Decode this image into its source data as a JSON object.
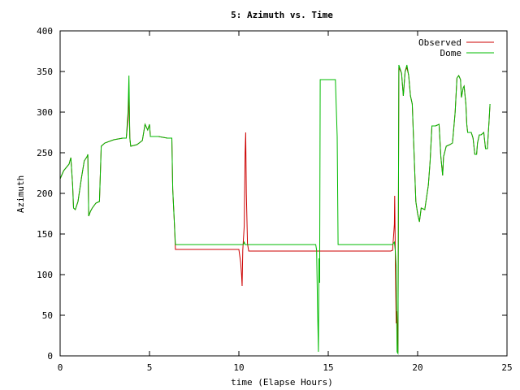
{
  "chart_data": {
    "type": "line",
    "title": "5: Azimuth vs. Time",
    "xlabel": "time (Elapse Hours)",
    "ylabel": "Azimuth",
    "xlim": [
      0,
      25
    ],
    "ylim": [
      0,
      400
    ],
    "xticks": [
      0,
      5,
      10,
      15,
      20,
      25
    ],
    "yticks": [
      0,
      50,
      100,
      150,
      200,
      250,
      300,
      350,
      400
    ],
    "grid": false,
    "legend_position": "top-right",
    "series": [
      {
        "name": "Observed",
        "color": "#cc0000",
        "points": [
          [
            0.0,
            218
          ],
          [
            0.2,
            228
          ],
          [
            0.5,
            236
          ],
          [
            0.6,
            244
          ],
          [
            0.7,
            210
          ],
          [
            0.75,
            182
          ],
          [
            0.85,
            180
          ],
          [
            1.0,
            190
          ],
          [
            1.2,
            220
          ],
          [
            1.35,
            240
          ],
          [
            1.5,
            245
          ],
          [
            1.55,
            248
          ],
          [
            1.6,
            172
          ],
          [
            1.7,
            178
          ],
          [
            1.8,
            182
          ],
          [
            2.0,
            188
          ],
          [
            2.2,
            190
          ],
          [
            2.3,
            258
          ],
          [
            2.5,
            262
          ],
          [
            3.0,
            266
          ],
          [
            3.5,
            268
          ],
          [
            3.7,
            268
          ],
          [
            3.8,
            290
          ],
          [
            3.85,
            325
          ],
          [
            3.9,
            268
          ],
          [
            3.95,
            258
          ],
          [
            4.3,
            260
          ],
          [
            4.6,
            265
          ],
          [
            4.75,
            285
          ],
          [
            4.9,
            278
          ],
          [
            5.0,
            285
          ],
          [
            5.05,
            270
          ],
          [
            5.5,
            270
          ],
          [
            6.0,
            268
          ],
          [
            6.25,
            268
          ],
          [
            6.3,
            205
          ],
          [
            6.38,
            168
          ],
          [
            6.45,
            131
          ],
          [
            8.0,
            131
          ],
          [
            10.0,
            131
          ],
          [
            10.1,
            115
          ],
          [
            10.15,
            100
          ],
          [
            10.18,
            86
          ],
          [
            10.22,
            130
          ],
          [
            10.3,
            160
          ],
          [
            10.35,
            250
          ],
          [
            10.38,
            275
          ],
          [
            10.42,
            200
          ],
          [
            10.48,
            138
          ],
          [
            10.55,
            129
          ],
          [
            12.0,
            129
          ],
          [
            14.0,
            129
          ],
          [
            18.5,
            129
          ],
          [
            18.6,
            130
          ],
          [
            18.7,
            162
          ],
          [
            18.72,
            197
          ],
          [
            18.76,
            105
          ],
          [
            18.8,
            40
          ],
          [
            18.84,
            55
          ],
          [
            18.9,
            4
          ],
          [
            18.95,
            355
          ],
          [
            19.1,
            348
          ],
          [
            19.2,
            320
          ],
          [
            19.3,
            350
          ],
          [
            19.4,
            355
          ],
          [
            19.5,
            345
          ],
          [
            19.6,
            320
          ],
          [
            19.7,
            310
          ],
          [
            19.8,
            250
          ],
          [
            19.9,
            190
          ],
          [
            20.0,
            175
          ],
          [
            20.1,
            165
          ],
          [
            20.2,
            182
          ],
          [
            20.4,
            180
          ],
          [
            20.6,
            210
          ],
          [
            20.7,
            240
          ],
          [
            20.8,
            283
          ],
          [
            21.0,
            283
          ],
          [
            21.2,
            285
          ],
          [
            21.3,
            245
          ],
          [
            21.4,
            222
          ],
          [
            21.45,
            245
          ],
          [
            21.6,
            258
          ],
          [
            21.8,
            260
          ],
          [
            21.95,
            262
          ],
          [
            22.1,
            300
          ],
          [
            22.2,
            342
          ],
          [
            22.3,
            345
          ],
          [
            22.4,
            340
          ],
          [
            22.45,
            318
          ],
          [
            22.55,
            330
          ],
          [
            22.6,
            332
          ],
          [
            22.7,
            310
          ],
          [
            22.75,
            285
          ],
          [
            22.8,
            275
          ],
          [
            23.0,
            275
          ],
          [
            23.1,
            268
          ],
          [
            23.2,
            248
          ],
          [
            23.3,
            248
          ],
          [
            23.35,
            262
          ],
          [
            23.45,
            272
          ],
          [
            23.55,
            272
          ],
          [
            23.7,
            275
          ],
          [
            23.8,
            255
          ],
          [
            23.9,
            255
          ],
          [
            24.0,
            290
          ],
          [
            24.05,
            310
          ]
        ]
      },
      {
        "name": "Dome",
        "color": "#00bb00",
        "points": [
          [
            0.0,
            218
          ],
          [
            0.2,
            228
          ],
          [
            0.5,
            236
          ],
          [
            0.6,
            244
          ],
          [
            0.7,
            210
          ],
          [
            0.75,
            182
          ],
          [
            0.85,
            180
          ],
          [
            1.0,
            190
          ],
          [
            1.2,
            220
          ],
          [
            1.35,
            240
          ],
          [
            1.5,
            245
          ],
          [
            1.55,
            248
          ],
          [
            1.6,
            172
          ],
          [
            1.7,
            178
          ],
          [
            1.8,
            182
          ],
          [
            2.0,
            188
          ],
          [
            2.2,
            190
          ],
          [
            2.3,
            258
          ],
          [
            2.5,
            262
          ],
          [
            3.0,
            266
          ],
          [
            3.5,
            268
          ],
          [
            3.7,
            268
          ],
          [
            3.8,
            300
          ],
          [
            3.85,
            345
          ],
          [
            3.9,
            268
          ],
          [
            3.95,
            258
          ],
          [
            4.3,
            260
          ],
          [
            4.6,
            265
          ],
          [
            4.75,
            285
          ],
          [
            4.9,
            278
          ],
          [
            5.0,
            285
          ],
          [
            5.05,
            270
          ],
          [
            5.5,
            270
          ],
          [
            6.0,
            268
          ],
          [
            6.25,
            268
          ],
          [
            6.3,
            205
          ],
          [
            6.38,
            168
          ],
          [
            6.45,
            137
          ],
          [
            8.0,
            137
          ],
          [
            10.0,
            137
          ],
          [
            10.25,
            137
          ],
          [
            10.3,
            140
          ],
          [
            10.35,
            137
          ],
          [
            12.0,
            137
          ],
          [
            14.0,
            137
          ],
          [
            14.3,
            137
          ],
          [
            14.35,
            130
          ],
          [
            14.4,
            60
          ],
          [
            14.45,
            5
          ],
          [
            14.48,
            120
          ],
          [
            14.52,
            90
          ],
          [
            14.55,
            340
          ],
          [
            15.0,
            340
          ],
          [
            15.4,
            340
          ],
          [
            15.5,
            270
          ],
          [
            15.55,
            137
          ],
          [
            17.0,
            137
          ],
          [
            18.6,
            137
          ],
          [
            18.7,
            140
          ],
          [
            18.75,
            130
          ],
          [
            18.8,
            110
          ],
          [
            18.85,
            5
          ],
          [
            18.9,
            3
          ],
          [
            18.95,
            358
          ],
          [
            19.1,
            348
          ],
          [
            19.2,
            320
          ],
          [
            19.3,
            350
          ],
          [
            19.4,
            358
          ],
          [
            19.5,
            345
          ],
          [
            19.6,
            320
          ],
          [
            19.7,
            310
          ],
          [
            19.8,
            250
          ],
          [
            19.9,
            190
          ],
          [
            20.0,
            175
          ],
          [
            20.1,
            165
          ],
          [
            20.2,
            182
          ],
          [
            20.4,
            180
          ],
          [
            20.6,
            210
          ],
          [
            20.7,
            240
          ],
          [
            20.8,
            283
          ],
          [
            21.0,
            283
          ],
          [
            21.2,
            285
          ],
          [
            21.3,
            245
          ],
          [
            21.4,
            222
          ],
          [
            21.45,
            245
          ],
          [
            21.6,
            258
          ],
          [
            21.8,
            260
          ],
          [
            21.95,
            262
          ],
          [
            22.1,
            300
          ],
          [
            22.2,
            342
          ],
          [
            22.3,
            345
          ],
          [
            22.4,
            340
          ],
          [
            22.45,
            318
          ],
          [
            22.55,
            330
          ],
          [
            22.6,
            332
          ],
          [
            22.7,
            310
          ],
          [
            22.75,
            285
          ],
          [
            22.8,
            275
          ],
          [
            23.0,
            275
          ],
          [
            23.1,
            268
          ],
          [
            23.2,
            248
          ],
          [
            23.3,
            248
          ],
          [
            23.35,
            262
          ],
          [
            23.45,
            272
          ],
          [
            23.55,
            272
          ],
          [
            23.7,
            275
          ],
          [
            23.8,
            255
          ],
          [
            23.9,
            255
          ],
          [
            24.0,
            290
          ],
          [
            24.05,
            310
          ]
        ]
      }
    ]
  }
}
